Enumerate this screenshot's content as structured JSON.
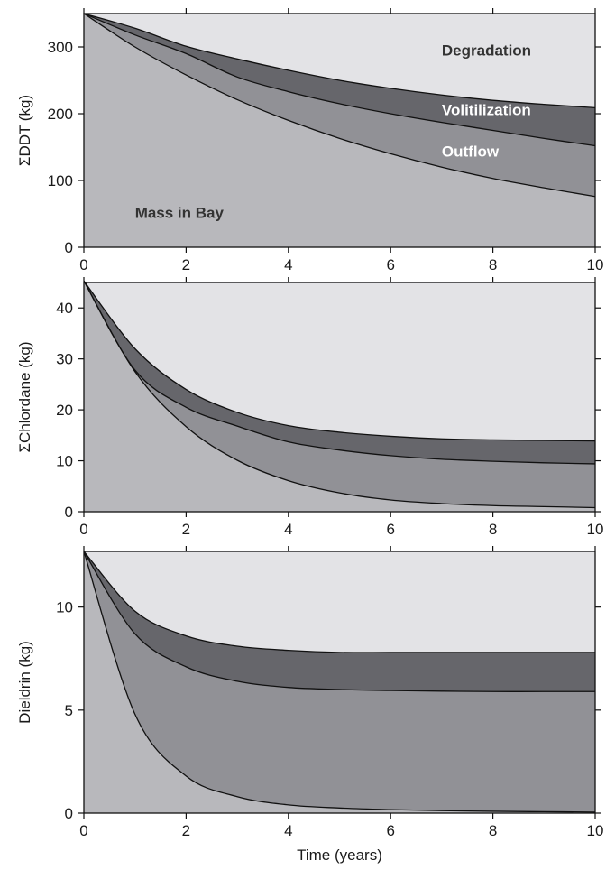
{
  "chart_data": [
    {
      "type": "area",
      "ylabel": "ΣDDT (kg)",
      "xlabel": "",
      "xlim": [
        0,
        10
      ],
      "ylim": [
        0,
        350
      ],
      "xticks": [
        0,
        2,
        4,
        6,
        8,
        10
      ],
      "yticks": [
        0,
        100,
        200,
        300
      ],
      "x": [
        0,
        1,
        2,
        3,
        4,
        5,
        6,
        7,
        8,
        9,
        10
      ],
      "boundaries": {
        "mass_in_bay": [
          350,
          300,
          258,
          221,
          190,
          163,
          140,
          120,
          103,
          89,
          76
        ],
        "plus_outflow": [
          350,
          318,
          290,
          255,
          233,
          215,
          200,
          187,
          175,
          163,
          152
        ],
        "plus_volatilization": [
          350,
          328,
          301,
          282,
          265,
          250,
          238,
          228,
          220,
          214,
          209
        ]
      },
      "region_labels": [
        {
          "text": "Degradation",
          "x": 7.0,
          "y": 287,
          "color": "#333333"
        },
        {
          "text": "Volitilization",
          "x": 7.0,
          "y": 198,
          "color": "#ffffff"
        },
        {
          "text": "Outflow",
          "x": 7.0,
          "y": 136,
          "color": "#ffffff"
        },
        {
          "text": "Mass in Bay",
          "x": 1.0,
          "y": 44,
          "color": "#333333"
        }
      ]
    },
    {
      "type": "area",
      "ylabel": "ΣChlordane (kg)",
      "xlabel": "",
      "xlim": [
        0,
        10
      ],
      "ylim": [
        0,
        45
      ],
      "xticks": [
        0,
        2,
        4,
        6,
        8,
        10
      ],
      "yticks": [
        0,
        10,
        20,
        30,
        40
      ],
      "x": [
        0,
        1,
        2,
        3,
        4,
        5,
        6,
        7,
        8,
        9,
        10
      ],
      "boundaries": {
        "mass_in_bay": [
          45.3,
          27.5,
          16.7,
          10.1,
          6.1,
          3.7,
          2.3,
          1.6,
          1.2,
          1.0,
          0.8
        ],
        "plus_outflow": [
          45.3,
          27.8,
          20.5,
          16.8,
          13.7,
          12.1,
          11.0,
          10.3,
          9.9,
          9.6,
          9.4
        ],
        "plus_volatilization": [
          45.3,
          32.0,
          24.0,
          19.5,
          16.9,
          15.6,
          14.8,
          14.3,
          14.1,
          14.0,
          13.9
        ]
      }
    },
    {
      "type": "area",
      "ylabel": "Dieldrin (kg)",
      "xlabel": "Time (years)",
      "xlim": [
        0,
        10
      ],
      "ylim": [
        0,
        12.7
      ],
      "xticks": [
        0,
        2,
        4,
        6,
        8,
        10
      ],
      "yticks": [
        0,
        5,
        10
      ],
      "x": [
        0,
        1,
        2,
        3,
        4,
        5,
        6,
        7,
        8,
        9,
        10
      ],
      "boundaries": {
        "mass_in_bay": [
          12.7,
          4.8,
          1.8,
          0.8,
          0.4,
          0.25,
          0.17,
          0.12,
          0.09,
          0.07,
          0.05
        ],
        "plus_outflow": [
          12.7,
          8.7,
          7.1,
          6.4,
          6.1,
          6.0,
          5.95,
          5.92,
          5.9,
          5.9,
          5.9
        ],
        "plus_volatilization": [
          12.7,
          9.8,
          8.6,
          8.1,
          7.9,
          7.8,
          7.8,
          7.8,
          7.8,
          7.8,
          7.8
        ]
      }
    }
  ],
  "colors": {
    "mass_in_bay": "#b8b8bc",
    "outflow": "#919196",
    "volatilization": "#66666b",
    "degradation": "#e3e3e6",
    "line": "#111111"
  }
}
